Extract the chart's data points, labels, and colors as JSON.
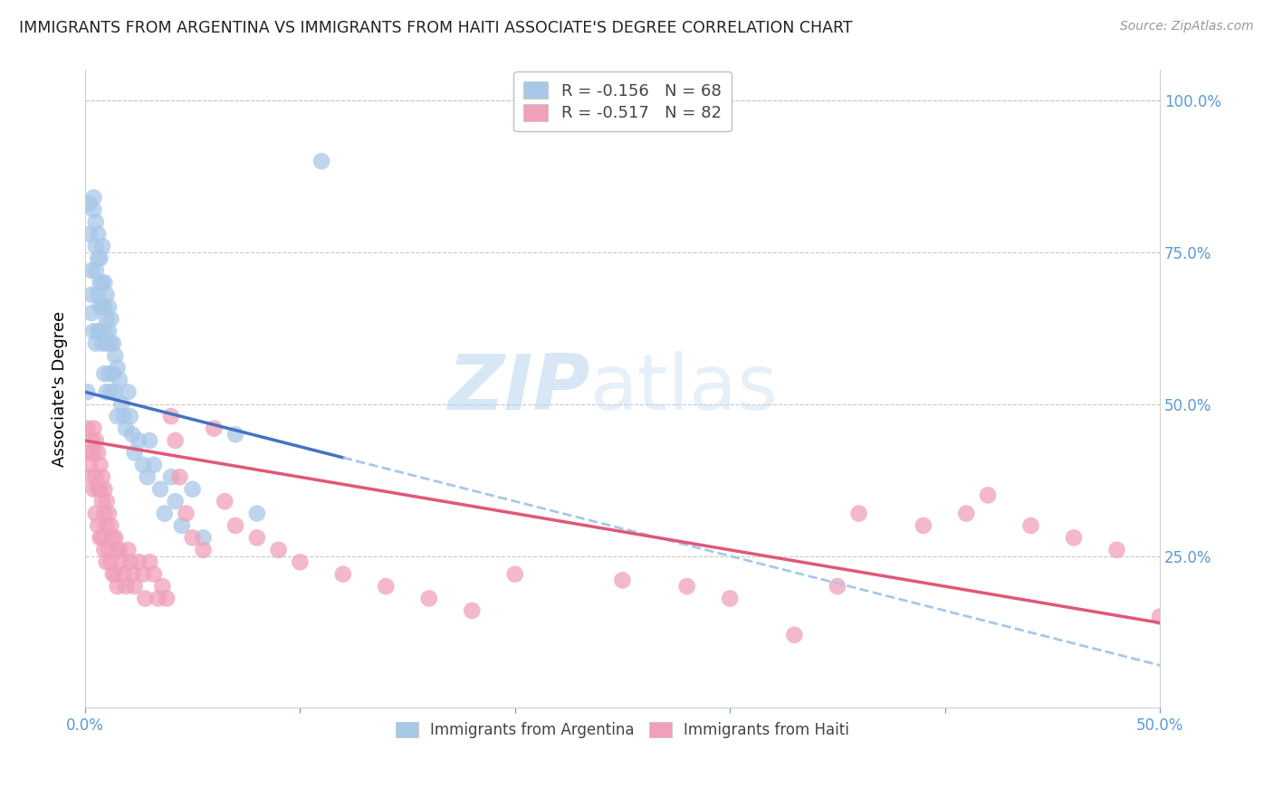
{
  "title": "IMMIGRANTS FROM ARGENTINA VS IMMIGRANTS FROM HAITI ASSOCIATE'S DEGREE CORRELATION CHART",
  "source": "Source: ZipAtlas.com",
  "ylabel": "Associate's Degree",
  "right_yticks": [
    "100.0%",
    "75.0%",
    "50.0%",
    "25.0%"
  ],
  "right_ytick_vals": [
    1.0,
    0.75,
    0.5,
    0.25
  ],
  "xlim": [
    0.0,
    0.5
  ],
  "ylim": [
    0.0,
    1.05
  ],
  "argentina_R": -0.156,
  "argentina_N": 68,
  "haiti_R": -0.517,
  "haiti_N": 82,
  "argentina_color": "#a8c8e8",
  "haiti_color": "#f0a0b8",
  "argentina_line_color": "#4472c4",
  "haiti_line_color": "#e05878",
  "dashed_line_color": "#a8c8e8",
  "watermark_zip": "ZIP",
  "watermark_atlas": "atlas",
  "arg_intercept": 0.52,
  "arg_slope": -0.9,
  "hai_intercept": 0.44,
  "hai_slope": -0.6,
  "argentina_x": [
    0.001,
    0.002,
    0.002,
    0.003,
    0.003,
    0.003,
    0.004,
    0.004,
    0.004,
    0.005,
    0.005,
    0.005,
    0.005,
    0.006,
    0.006,
    0.006,
    0.006,
    0.007,
    0.007,
    0.007,
    0.007,
    0.008,
    0.008,
    0.008,
    0.008,
    0.009,
    0.009,
    0.009,
    0.009,
    0.01,
    0.01,
    0.01,
    0.01,
    0.011,
    0.011,
    0.011,
    0.012,
    0.012,
    0.012,
    0.013,
    0.013,
    0.014,
    0.014,
    0.015,
    0.015,
    0.016,
    0.017,
    0.018,
    0.019,
    0.02,
    0.021,
    0.022,
    0.023,
    0.025,
    0.027,
    0.029,
    0.03,
    0.032,
    0.035,
    0.037,
    0.04,
    0.042,
    0.045,
    0.05,
    0.055,
    0.07,
    0.08,
    0.11
  ],
  "argentina_y": [
    0.52,
    0.83,
    0.78,
    0.72,
    0.68,
    0.65,
    0.84,
    0.82,
    0.62,
    0.8,
    0.76,
    0.72,
    0.6,
    0.78,
    0.74,
    0.68,
    0.62,
    0.74,
    0.7,
    0.66,
    0.62,
    0.76,
    0.7,
    0.66,
    0.6,
    0.7,
    0.66,
    0.62,
    0.55,
    0.68,
    0.64,
    0.6,
    0.52,
    0.66,
    0.62,
    0.55,
    0.64,
    0.6,
    0.52,
    0.6,
    0.55,
    0.58,
    0.52,
    0.56,
    0.48,
    0.54,
    0.5,
    0.48,
    0.46,
    0.52,
    0.48,
    0.45,
    0.42,
    0.44,
    0.4,
    0.38,
    0.44,
    0.4,
    0.36,
    0.32,
    0.38,
    0.34,
    0.3,
    0.36,
    0.28,
    0.45,
    0.32,
    0.9
  ],
  "haiti_x": [
    0.001,
    0.002,
    0.002,
    0.003,
    0.003,
    0.004,
    0.004,
    0.004,
    0.005,
    0.005,
    0.005,
    0.006,
    0.006,
    0.006,
    0.007,
    0.007,
    0.007,
    0.008,
    0.008,
    0.008,
    0.009,
    0.009,
    0.009,
    0.01,
    0.01,
    0.01,
    0.011,
    0.011,
    0.012,
    0.012,
    0.013,
    0.013,
    0.014,
    0.014,
    0.015,
    0.015,
    0.016,
    0.017,
    0.018,
    0.019,
    0.02,
    0.021,
    0.022,
    0.023,
    0.025,
    0.027,
    0.028,
    0.03,
    0.032,
    0.034,
    0.036,
    0.038,
    0.04,
    0.042,
    0.044,
    0.047,
    0.05,
    0.055,
    0.06,
    0.065,
    0.07,
    0.08,
    0.09,
    0.1,
    0.12,
    0.14,
    0.16,
    0.18,
    0.2,
    0.25,
    0.28,
    0.3,
    0.33,
    0.36,
    0.39,
    0.41,
    0.44,
    0.46,
    0.48,
    0.5,
    0.35,
    0.42
  ],
  "haiti_y": [
    0.46,
    0.42,
    0.4,
    0.44,
    0.38,
    0.46,
    0.42,
    0.36,
    0.44,
    0.38,
    0.32,
    0.42,
    0.36,
    0.3,
    0.4,
    0.36,
    0.28,
    0.38,
    0.34,
    0.28,
    0.36,
    0.32,
    0.26,
    0.34,
    0.3,
    0.24,
    0.32,
    0.26,
    0.3,
    0.24,
    0.28,
    0.22,
    0.28,
    0.22,
    0.26,
    0.2,
    0.26,
    0.24,
    0.22,
    0.2,
    0.26,
    0.24,
    0.22,
    0.2,
    0.24,
    0.22,
    0.18,
    0.24,
    0.22,
    0.18,
    0.2,
    0.18,
    0.48,
    0.44,
    0.38,
    0.32,
    0.28,
    0.26,
    0.46,
    0.34,
    0.3,
    0.28,
    0.26,
    0.24,
    0.22,
    0.2,
    0.18,
    0.16,
    0.22,
    0.21,
    0.2,
    0.18,
    0.12,
    0.32,
    0.3,
    0.32,
    0.3,
    0.28,
    0.26,
    0.15,
    0.2,
    0.35
  ]
}
